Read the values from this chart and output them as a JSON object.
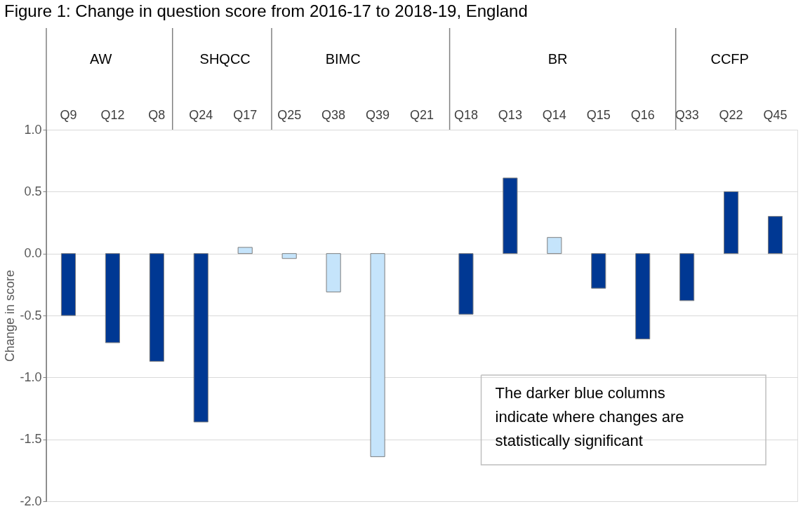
{
  "chart_data": {
    "type": "bar",
    "title": "Figure 1: Change in question score from 2016-17 to 2018-19, England",
    "ylabel": "Change in score",
    "categories": [
      "Q9",
      "Q12",
      "Q8",
      "Q24",
      "Q17",
      "Q25",
      "Q38",
      "Q39",
      "Q21",
      "Q18",
      "Q13",
      "Q14",
      "Q15",
      "Q16",
      "Q33",
      "Q22",
      "Q45"
    ],
    "values": [
      -0.5,
      -0.72,
      -0.87,
      -1.36,
      0.05,
      -0.04,
      -0.31,
      -1.64,
      null,
      -0.49,
      0.61,
      0.13,
      -0.28,
      -0.69,
      -0.38,
      0.5,
      0.3
    ],
    "colors": [
      "#003893",
      "#003893",
      "#003893",
      "#003893",
      "#c5e4fb",
      "#c5e4fb",
      "#c5e4fb",
      "#c5e4fb",
      "#c5e4fb",
      "#003893",
      "#003893",
      "#c5e4fb",
      "#003893",
      "#003893",
      "#003893",
      "#003893",
      "#003893"
    ],
    "ylim": [
      -2.0,
      1.0
    ],
    "yticks": [
      {
        "value": -2.0,
        "label": "-2.0"
      },
      {
        "value": -1.5,
        "label": "-1.5"
      },
      {
        "value": -1.0,
        "label": "-1.0"
      },
      {
        "value": -0.5,
        "label": "-0.5"
      },
      {
        "value": 0.0,
        "label": "0.0"
      },
      {
        "value": 0.5,
        "label": "0.5"
      },
      {
        "value": 1.0,
        "label": "1.0"
      }
    ],
    "grid": "y",
    "annotations": [
      "AW",
      "SHQCC",
      "BIMC",
      "BR",
      "CCFP",
      "The darker blue columns indicate where changes are statistically significant"
    ]
  }
}
